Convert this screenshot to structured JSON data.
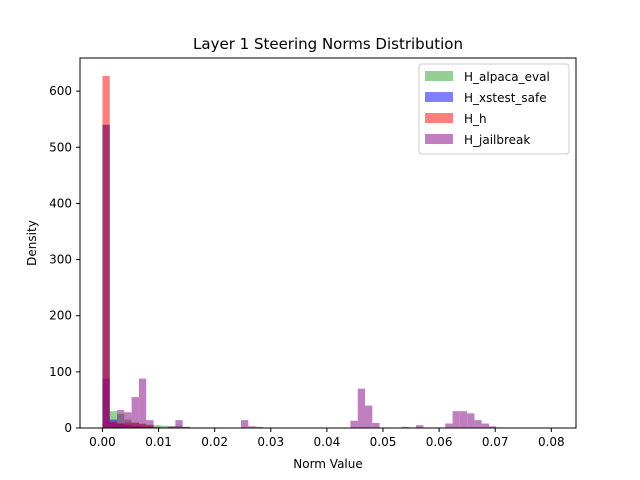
{
  "chart_data": {
    "type": "bar",
    "title": "Layer 1 Steering Norms Distribution",
    "xlabel": "Norm Value",
    "ylabel": "Density",
    "xlim": [
      -0.004,
      0.0844
    ],
    "ylim": [
      0,
      659
    ],
    "xticks": [
      0.0,
      0.01,
      0.02,
      0.03,
      0.04,
      0.05,
      0.06,
      0.07,
      0.08
    ],
    "xtick_labels": [
      "0.00",
      "0.01",
      "0.02",
      "0.03",
      "0.04",
      "0.05",
      "0.06",
      "0.07",
      "0.08"
    ],
    "yticks": [
      0,
      100,
      200,
      300,
      400,
      500,
      600
    ],
    "ytick_labels": [
      "0",
      "100",
      "200",
      "300",
      "400",
      "500",
      "600"
    ],
    "grid": false,
    "legend_position": "top-right",
    "legend": [
      "H_alpaca_eval",
      "H_xstest_safe",
      "H_h",
      "H_jailbreak"
    ],
    "series": [
      {
        "name": "H_alpaca_eval",
        "color": "#2ca02c",
        "alpha": 0.5,
        "bin_edges": [
          0.0,
          0.0013,
          0.0026,
          0.0039,
          0.0052,
          0.0065,
          0.0078,
          0.0091,
          0.0104,
          0.0117,
          0.013,
          0.0143,
          0.0156,
          0.0169,
          0.0182,
          0.0195,
          0.0208
        ],
        "values": [
          540,
          30,
          25,
          15,
          10,
          8,
          6,
          5,
          4,
          3,
          4,
          2,
          1,
          1,
          1,
          1
        ]
      },
      {
        "name": "H_xstest_safe",
        "color": "#0000ff",
        "alpha": 0.5,
        "bin_edges": [
          0.0,
          0.0013,
          0.0026,
          0.0039,
          0.0052,
          0.0065,
          0.0078,
          0.0091
        ],
        "values": [
          540,
          15,
          8,
          6,
          4,
          3,
          2
        ]
      },
      {
        "name": "H_h",
        "color": "#ff0000",
        "alpha": 0.5,
        "bin_edges": [
          0.0,
          0.0013,
          0.0026,
          0.0039,
          0.0052,
          0.0065,
          0.0078,
          0.0091,
          0.0104,
          0.0117,
          0.013,
          0.0143,
          0.0156,
          0.0169,
          0.0182,
          0.0195,
          0.0208,
          0.0221,
          0.0234,
          0.0247,
          0.026,
          0.0273,
          0.0286
        ],
        "values": [
          627,
          12,
          8,
          10,
          9,
          7,
          5,
          2,
          1,
          1,
          0,
          0,
          0,
          0,
          0,
          0,
          0,
          0,
          0,
          0,
          0,
          2
        ]
      },
      {
        "name": "H_jailbreak",
        "color": "#800080",
        "alpha": 0.5,
        "bin_edges": [
          0.0,
          0.0013,
          0.0026,
          0.0039,
          0.0052,
          0.0065,
          0.0078,
          0.0091,
          0.0104,
          0.0117,
          0.013,
          0.0143,
          0.0156,
          0.0169,
          0.0182,
          0.0195,
          0.0208,
          0.0221,
          0.0234,
          0.0247,
          0.026,
          0.0273,
          0.0286,
          0.0299,
          0.0312,
          0.0325,
          0.0338,
          0.0351,
          0.0364,
          0.0377,
          0.039,
          0.0403,
          0.0416,
          0.0429,
          0.0442,
          0.0455,
          0.0468,
          0.0481,
          0.0494,
          0.0507,
          0.052,
          0.0533,
          0.0546,
          0.0559,
          0.0572,
          0.0585,
          0.0598,
          0.0611,
          0.0624,
          0.0637,
          0.065,
          0.0663,
          0.0676,
          0.0689,
          0.0702,
          0.0715,
          0.0728
        ],
        "values": [
          88,
          10,
          32,
          28,
          55,
          88,
          14,
          0,
          0,
          3,
          14,
          2,
          0,
          0,
          0,
          0,
          0,
          0,
          0,
          14,
          3,
          0,
          0,
          0,
          0,
          0,
          0,
          0,
          0,
          0,
          0,
          0,
          0,
          0,
          13,
          70,
          40,
          9,
          1,
          0,
          0,
          2,
          1,
          5,
          1,
          1,
          1,
          8,
          30,
          30,
          26,
          14,
          8,
          3,
          1,
          0
        ]
      }
    ]
  }
}
